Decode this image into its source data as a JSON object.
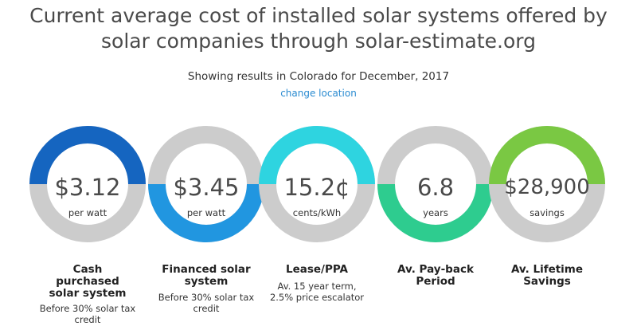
{
  "header": {
    "title_line1": "Current average cost of installed solar systems offered by",
    "title_line2": "solar companies through solar-estimate.org",
    "subtitle": "Showing results in Colorado for December, 2017",
    "change_location": "change location"
  },
  "colors": {
    "cash": "#1565c0",
    "financed": "#2196e0",
    "lease": "#2ed4e0",
    "payback": "#2ecc8f",
    "lifetime": "#7ac843",
    "track": "#cccccc"
  },
  "cards": [
    {
      "value": "$3.12",
      "unit": "per watt",
      "label_line1": "Cash",
      "label_line2": "purchased",
      "label_line3": "solar system",
      "note_line1": "Before 30% solar tax",
      "note_line2": "credit"
    },
    {
      "value": "$3.45",
      "unit": "per watt",
      "label_line1": "Financed solar",
      "label_line2": "system",
      "note_line1": "Before 30% solar tax",
      "note_line2": "credit"
    },
    {
      "value": "15.2¢",
      "unit": "cents/kWh",
      "label_line1": "Lease/PPA",
      "note_line1": "Av. 15 year term,",
      "note_line2": "2.5% price escalator"
    },
    {
      "value": "6.8",
      "unit": "years",
      "label_line1": "Av. Pay-back",
      "label_line2": "Period"
    },
    {
      "value": "$28,900",
      "unit": "savings",
      "label_line1": "Av. Lifetime",
      "label_line2": "Savings"
    }
  ]
}
